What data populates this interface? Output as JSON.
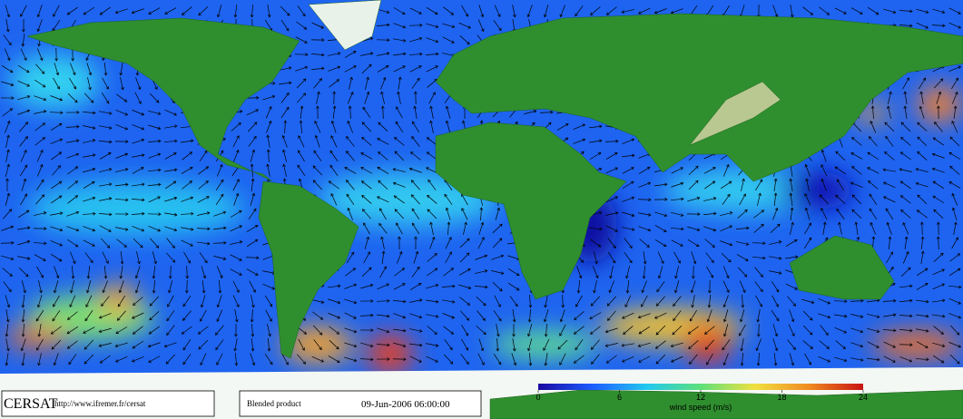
{
  "footer": {
    "logo": "CERSAT",
    "url": "http://www.ifremer.fr/cersat",
    "product": "Blended product",
    "timestamp": "09-Jun-2006 06:00:00"
  },
  "colorbar": {
    "lim": [
      0,
      24
    ],
    "ticks": [
      0,
      6,
      12,
      18,
      24
    ],
    "label": "wind speed (m/s)",
    "colors": [
      "#1a0aa0",
      "#1e5cff",
      "#22c8f0",
      "#5de07a",
      "#f0e040",
      "#f08a20",
      "#c81414"
    ]
  }
}
